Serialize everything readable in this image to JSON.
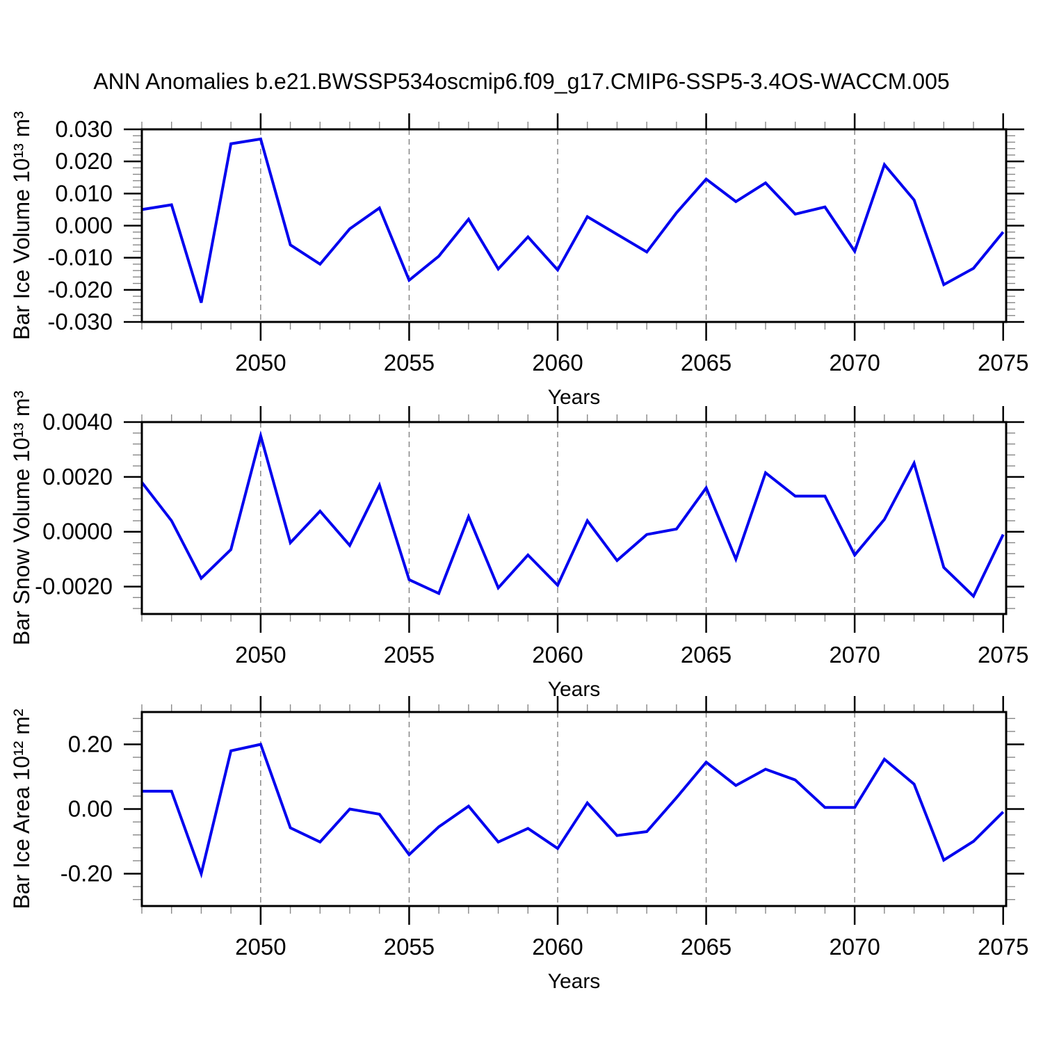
{
  "title": "ANN Anomalies b.e21.BWSSP534oscmip6.f09_g17.CMIP6-SSP5-3.4OS-WACCM.005",
  "line_color": "#0000EE",
  "grid_color": "#808080",
  "chart_data": [
    {
      "type": "line",
      "name": "bar-ice-volume",
      "title": "",
      "xlabel": "Years",
      "ylabel": "Bar Ice Volume 10¹³ m³",
      "x": [
        2046,
        2047,
        2048,
        2049,
        2050,
        2051,
        2052,
        2053,
        2054,
        2055,
        2056,
        2057,
        2058,
        2059,
        2060,
        2061,
        2062,
        2063,
        2064,
        2065,
        2066,
        2067,
        2068,
        2069,
        2070,
        2071,
        2072,
        2073,
        2074,
        2075
      ],
      "values": [
        0.005,
        0.0065,
        -0.024,
        0.0255,
        0.027,
        -0.006,
        -0.012,
        -0.001,
        0.0055,
        -0.017,
        -0.0095,
        0.002,
        -0.0135,
        -0.0035,
        -0.0138,
        0.0028,
        -0.0027,
        -0.0082,
        0.004,
        0.0145,
        0.0075,
        0.0133,
        0.0036,
        0.0058,
        -0.008,
        0.019,
        0.008,
        -0.0184,
        -0.0133,
        -0.002
      ],
      "xlim": [
        2046,
        2075.1
      ],
      "ylim": [
        -0.03,
        0.03
      ],
      "xticks": [
        2050,
        2055,
        2060,
        2065,
        2070,
        2075
      ],
      "xtick_labels": [
        "2050",
        "2055",
        "2060",
        "2065",
        "2070",
        "2075"
      ],
      "x_minor_step": 1,
      "yticks": [
        0.03,
        0.02,
        0.01,
        0.0,
        -0.01,
        -0.02,
        -0.03
      ],
      "ytick_labels": [
        "0.030",
        "0.020",
        "0.010",
        "0.000",
        "-0.010",
        "-0.020",
        "-0.030"
      ],
      "y_minor_step": 0.002,
      "grid_x": [
        2050,
        2055,
        2060,
        2065,
        2070
      ],
      "grid_style": "vertical-dashed",
      "legend": null
    },
    {
      "type": "line",
      "name": "bar-snow-volume",
      "title": "",
      "xlabel": "Years",
      "ylabel": "Bar Snow Volume 10¹³ m³",
      "x": [
        2046,
        2047,
        2048,
        2049,
        2050,
        2051,
        2052,
        2053,
        2054,
        2055,
        2056,
        2057,
        2058,
        2059,
        2060,
        2061,
        2062,
        2063,
        2064,
        2065,
        2066,
        2067,
        2068,
        2069,
        2070,
        2071,
        2072,
        2073,
        2074,
        2075
      ],
      "values": [
        0.0018,
        0.0004,
        -0.0017,
        -0.00065,
        0.0035,
        -0.0004,
        0.00075,
        -0.0005,
        0.0017,
        -0.00175,
        -0.00225,
        0.00055,
        -0.00205,
        -0.00085,
        -0.00195,
        0.0004,
        -0.00105,
        -0.0001,
        0.0001,
        0.0016,
        -0.001,
        0.00215,
        0.0013,
        0.0013,
        -0.00085,
        0.00045,
        0.0025,
        -0.0013,
        -0.00235,
        -0.0001
      ],
      "xlim": [
        2046,
        2075.1
      ],
      "ylim": [
        -0.003,
        0.004
      ],
      "xticks": [
        2050,
        2055,
        2060,
        2065,
        2070,
        2075
      ],
      "xtick_labels": [
        "2050",
        "2055",
        "2060",
        "2065",
        "2070",
        "2075"
      ],
      "x_minor_step": 1,
      "yticks": [
        0.004,
        0.002,
        0.0,
        -0.002
      ],
      "ytick_labels": [
        "0.0040",
        "0.0020",
        "0.0000",
        "-0.0020"
      ],
      "y_minor_step": 0.0004,
      "grid_x": [
        2050,
        2055,
        2060,
        2065,
        2070
      ],
      "grid_style": "vertical-dashed",
      "legend": null
    },
    {
      "type": "line",
      "name": "bar-ice-area",
      "title": "",
      "xlabel": "Years",
      "ylabel": "Bar Ice Area 10¹² m²",
      "x": [
        2046,
        2047,
        2048,
        2049,
        2050,
        2051,
        2052,
        2053,
        2054,
        2055,
        2056,
        2057,
        2058,
        2059,
        2060,
        2061,
        2062,
        2063,
        2064,
        2065,
        2066,
        2067,
        2068,
        2069,
        2070,
        2071,
        2072,
        2073,
        2074,
        2075
      ],
      "values": [
        0.055,
        0.055,
        -0.2,
        0.18,
        0.2,
        -0.058,
        -0.102,
        0.0,
        -0.016,
        -0.141,
        -0.055,
        0.009,
        -0.102,
        -0.06,
        -0.122,
        0.019,
        -0.082,
        -0.07,
        0.035,
        0.145,
        0.073,
        0.123,
        0.09,
        0.005,
        0.005,
        0.154,
        0.077,
        -0.158,
        -0.1,
        -0.009
      ],
      "xlim": [
        2046,
        2075.1
      ],
      "ylim": [
        -0.3,
        0.3
      ],
      "xticks": [
        2050,
        2055,
        2060,
        2065,
        2070,
        2075
      ],
      "xtick_labels": [
        "2050",
        "2055",
        "2060",
        "2065",
        "2070",
        "2075"
      ],
      "x_minor_step": 1,
      "yticks": [
        0.2,
        0.0,
        -0.2
      ],
      "ytick_labels": [
        "0.20",
        "0.00",
        "-0.20"
      ],
      "y_minor_step": 0.04,
      "grid_x": [
        2050,
        2055,
        2060,
        2065,
        2070
      ],
      "grid_style": "vertical-dashed",
      "legend": null
    }
  ]
}
